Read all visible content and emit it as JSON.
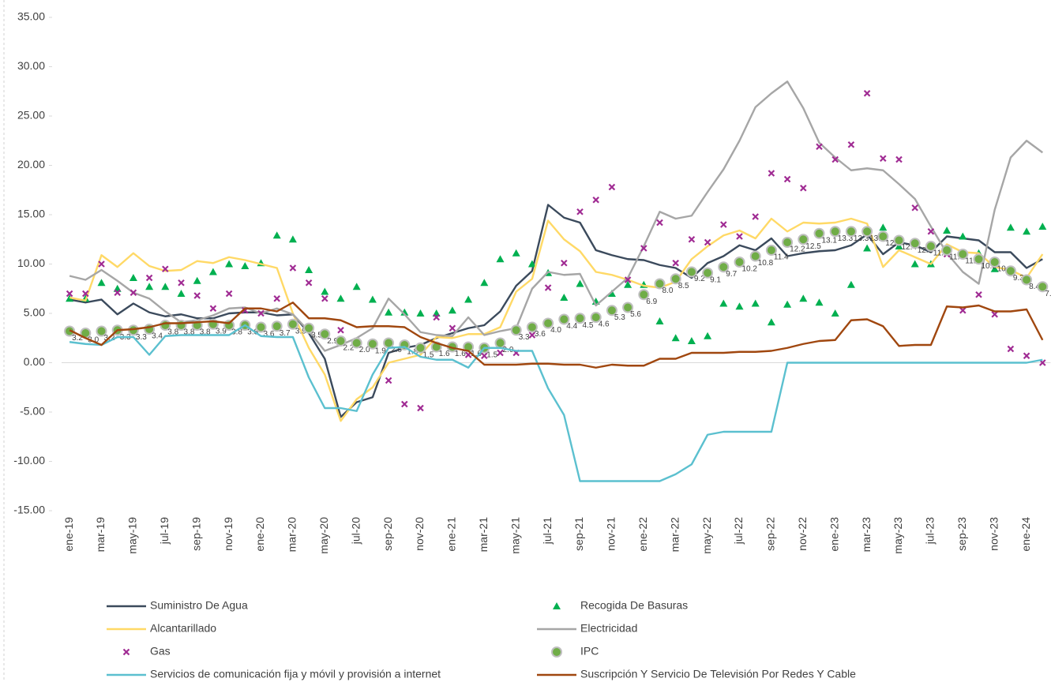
{
  "chart_data": {
    "type": "line",
    "categories": [
      "ene-19",
      null,
      "mar-19",
      null,
      "may-19",
      null,
      "jul-19",
      null,
      "sep-19",
      null,
      "nov-19",
      null,
      "ene-20",
      null,
      "mar-20",
      null,
      "may-20",
      null,
      "jul-20",
      null,
      "sep-20",
      null,
      "nov-20",
      null,
      "ene-21",
      null,
      "mar-21",
      null,
      "may-21",
      null,
      "jul-21",
      null,
      "sep-21",
      null,
      "nov-21",
      null,
      "ene-22",
      null,
      "mar-22",
      null,
      "may-22",
      null,
      "jul-22",
      null,
      "sep-22",
      null,
      "nov-22",
      null,
      "ene-23",
      null,
      "mar-23",
      null,
      "may-23",
      null,
      "jul-23",
      null,
      "sep-23",
      null,
      "nov-23",
      null,
      "ene-24",
      null
    ],
    "ylim": [
      -15,
      35
    ],
    "yticks": [
      {
        "value": -15,
        "label": "-15.00"
      },
      {
        "value": -10,
        "label": "-10.00"
      },
      {
        "value": -5,
        "label": "-5.00"
      },
      {
        "value": 0,
        "label": "0.00"
      },
      {
        "value": 5,
        "label": "5.00"
      },
      {
        "value": 10,
        "label": "10.00"
      },
      {
        "value": 15,
        "label": "15.00"
      },
      {
        "value": 20,
        "label": "20.00"
      },
      {
        "value": 25,
        "label": "25.00"
      },
      {
        "value": 30,
        "label": "30.00"
      },
      {
        "value": 35,
        "label": "35.00"
      }
    ],
    "grid": false,
    "legend": "bottom",
    "series": [
      {
        "name": "Suministro De Agua",
        "color": "#3b4a5c",
        "style": "line",
        "values": [
          6.4,
          6.1,
          6.4,
          4.9,
          6.0,
          5.1,
          4.7,
          4.9,
          4.5,
          4.5,
          5.0,
          5.1,
          5.1,
          4.8,
          4.9,
          3.0,
          0.4,
          -5.5,
          -4.0,
          -3.5,
          1.0,
          1.5,
          1.8,
          2.5,
          3.0,
          3.5,
          3.8,
          5.2,
          7.8,
          9.3,
          16.0,
          14.7,
          14.2,
          11.4,
          10.9,
          10.5,
          10.4,
          9.9,
          9.6,
          8.6,
          10.1,
          10.8,
          11.9,
          11.4,
          12.6,
          10.8,
          11.1,
          11.3,
          11.4,
          11.9,
          13.0,
          11.0,
          12.2,
          11.9,
          11.2,
          12.8,
          12.6,
          12.4,
          11.2,
          11.2,
          9.6,
          10.5
        ]
      },
      {
        "name": "Recogida De Basuras",
        "color": "#00b050",
        "style": "triangle",
        "values": [
          6.5,
          6.5,
          8.1,
          7.5,
          8.6,
          7.7,
          7.7,
          7.0,
          8.3,
          9.2,
          10.0,
          9.8,
          10.1,
          12.9,
          12.5,
          9.4,
          7.2,
          6.5,
          7.7,
          6.4,
          5.1,
          5.1,
          5.0,
          5.0,
          5.3,
          6.4,
          8.1,
          10.5,
          11.1,
          10.0,
          9.1,
          6.6,
          8.0,
          6.2,
          7.0,
          7.9,
          7.9,
          4.2,
          2.5,
          2.2,
          2.7,
          6.0,
          5.7,
          6.0,
          4.1,
          5.9,
          6.5,
          6.1,
          5.0,
          7.9,
          11.6,
          13.7,
          11.8,
          10.0,
          10.0,
          13.4,
          12.8,
          11.1,
          9.5,
          13.7,
          13.3,
          13.8
        ]
      },
      {
        "name": "Alcantarillado",
        "color": "#ffd966",
        "style": "line",
        "values": [
          6.6,
          6.3,
          10.9,
          9.7,
          11.1,
          9.8,
          9.3,
          9.4,
          10.3,
          10.1,
          10.7,
          10.4,
          10.0,
          9.6,
          5.0,
          1.5,
          -1.2,
          -5.9,
          -3.7,
          -2.5,
          0.0,
          0.4,
          0.8,
          2.6,
          2.5,
          2.9,
          2.9,
          3.6,
          7.2,
          8.5,
          14.4,
          12.5,
          11.3,
          9.2,
          8.9,
          8.4,
          7.8,
          7.6,
          8.2,
          10.5,
          11.8,
          12.9,
          13.4,
          12.6,
          14.6,
          13.3,
          14.2,
          14.1,
          14.2,
          14.6,
          14.1,
          9.7,
          11.4,
          10.7,
          10.0,
          12.0,
          11.2,
          11.1,
          9.7,
          9.4,
          8.6,
          11.0
        ]
      },
      {
        "name": "Electricidad",
        "color": "#a6a6a6",
        "style": "line",
        "values": [
          8.8,
          8.4,
          9.4,
          8.3,
          7.1,
          6.5,
          5.2,
          4.1,
          4.3,
          4.8,
          5.5,
          5.6,
          5.0,
          5.5,
          4.9,
          3.2,
          1.2,
          1.8,
          2.5,
          3.5,
          6.5,
          4.9,
          3.1,
          2.8,
          2.7,
          4.6,
          2.8,
          3.2,
          3.5,
          7.5,
          9.2,
          8.9,
          9.0,
          5.8,
          7.2,
          8.6,
          11.8,
          15.3,
          14.6,
          14.9,
          17.3,
          19.6,
          22.5,
          25.9,
          27.3,
          28.5,
          25.8,
          22.3,
          20.8,
          19.5,
          19.7,
          19.5,
          18.1,
          16.6,
          13.8,
          11.1,
          9.2,
          8.0,
          15.5,
          20.8,
          22.5,
          21.3
        ]
      },
      {
        "name": "Gas",
        "color": "#a02b93",
        "style": "cross",
        "values": [
          7.0,
          7.0,
          10.0,
          7.1,
          7.1,
          8.6,
          9.5,
          8.1,
          6.8,
          5.5,
          7.0,
          5.3,
          5.0,
          6.5,
          9.6,
          8.1,
          6.5,
          3.3,
          2.2,
          2.0,
          -1.8,
          -4.2,
          -4.6,
          4.6,
          3.5,
          0.8,
          0.7,
          1.0,
          1.0,
          2.8,
          7.6,
          10.1,
          15.3,
          16.5,
          17.8,
          8.4,
          11.6,
          14.2,
          10.1,
          12.5,
          12.2,
          14.0,
          12.8,
          14.8,
          19.2,
          18.6,
          17.7,
          21.9,
          20.6,
          22.1,
          27.3,
          20.7,
          20.6,
          15.7,
          13.3,
          11.0,
          5.3,
          6.9,
          4.9,
          1.4,
          0.7,
          0.0
        ]
      },
      {
        "name": "IPC",
        "color": "#70ad47",
        "style": "circle",
        "values": [
          3.2,
          3.0,
          3.2,
          3.3,
          3.3,
          3.4,
          3.8,
          3.8,
          3.8,
          3.9,
          3.8,
          3.8,
          3.6,
          3.7,
          3.9,
          3.5,
          2.9,
          2.2,
          2.0,
          1.9,
          2.0,
          1.8,
          1.5,
          1.6,
          1.6,
          1.6,
          1.5,
          2.0,
          3.3,
          3.6,
          4.0,
          4.4,
          4.5,
          4.6,
          5.3,
          5.6,
          6.9,
          8.0,
          8.5,
          9.2,
          9.1,
          9.7,
          10.2,
          10.8,
          11.4,
          12.2,
          12.5,
          13.1,
          13.3,
          13.3,
          13.3,
          12.8,
          12.4,
          12.1,
          11.8,
          11.4,
          11.0,
          10.5,
          10.2,
          9.3,
          8.4,
          7.7
        ],
        "value_labels": [
          "3.2",
          "3.0",
          "3.2",
          "3.3",
          "3.3",
          "3.4",
          "3.8",
          "3.8",
          "3.8",
          "3.9",
          "3.8",
          "3.8",
          "3.6",
          "3.7",
          "3.9",
          "3.5",
          "2.9",
          "2.2",
          "2.0",
          "1.9",
          "2.0",
          "1.8",
          "1.5",
          "1.6",
          "1.6",
          "1.6",
          "1.5",
          "2.0",
          "3.3",
          "3.6",
          "4.0",
          "4.4",
          "4.5",
          "4.6",
          "5.3",
          "5.6",
          "6.9",
          "8.0",
          "8.5",
          "9.2",
          "9.1",
          "9.7",
          "10.2",
          "10.8",
          "11.4",
          "12.2",
          "12.5",
          "13.1",
          "13.3",
          "13.3",
          "13.3",
          "12.8",
          "12.4",
          "12.1",
          "11.8",
          "11.4",
          "11.0",
          "10.5",
          "10.2",
          "9.3",
          "8.4",
          "7.7"
        ]
      },
      {
        "name": "Servicios de comunicación fija y móvil y provisión a internet",
        "color": "#5bc0cf",
        "style": "line",
        "values": [
          2.1,
          1.9,
          1.8,
          2.6,
          2.6,
          0.8,
          2.7,
          2.8,
          2.8,
          2.8,
          2.8,
          3.8,
          2.7,
          2.6,
          2.6,
          -1.5,
          -4.6,
          -4.6,
          -4.9,
          -1.2,
          1.5,
          1.6,
          0.6,
          0.3,
          0.3,
          -0.5,
          1.5,
          1.5,
          1.2,
          1.2,
          -2.6,
          -5.3,
          -12.0,
          -12.0,
          -12.0,
          -12.0,
          -12.0,
          -12.0,
          -11.3,
          -10.3,
          -7.3,
          -7.0,
          -7.0,
          -7.0,
          -7.0,
          0.0,
          0.0,
          0.0,
          0.0,
          0.0,
          0.0,
          0.0,
          0.0,
          0.0,
          0.0,
          0.0,
          0.0,
          0.0,
          0.0,
          0.0,
          0.0,
          0.3
        ]
      },
      {
        "name": "Suscripción Y Servicio De Televisión Por Redes Y Cable",
        "color": "#a0470f",
        "style": "line",
        "values": [
          3.3,
          2.5,
          1.8,
          3.3,
          3.4,
          3.6,
          4.0,
          4.0,
          4.1,
          4.2,
          4.0,
          5.5,
          5.5,
          5.2,
          6.1,
          4.5,
          4.5,
          4.3,
          3.6,
          3.7,
          3.7,
          3.6,
          2.6,
          2.0,
          1.5,
          1.2,
          -0.2,
          -0.2,
          -0.2,
          -0.1,
          -0.1,
          -0.2,
          -0.2,
          -0.5,
          -0.2,
          -0.3,
          -0.3,
          0.4,
          0.4,
          1.0,
          1.0,
          1.0,
          1.1,
          1.1,
          1.2,
          1.5,
          1.9,
          2.2,
          2.3,
          4.3,
          4.4,
          3.7,
          1.7,
          1.8,
          1.8,
          5.7,
          5.6,
          5.8,
          5.2,
          5.2,
          5.4,
          2.3
        ]
      }
    ]
  }
}
